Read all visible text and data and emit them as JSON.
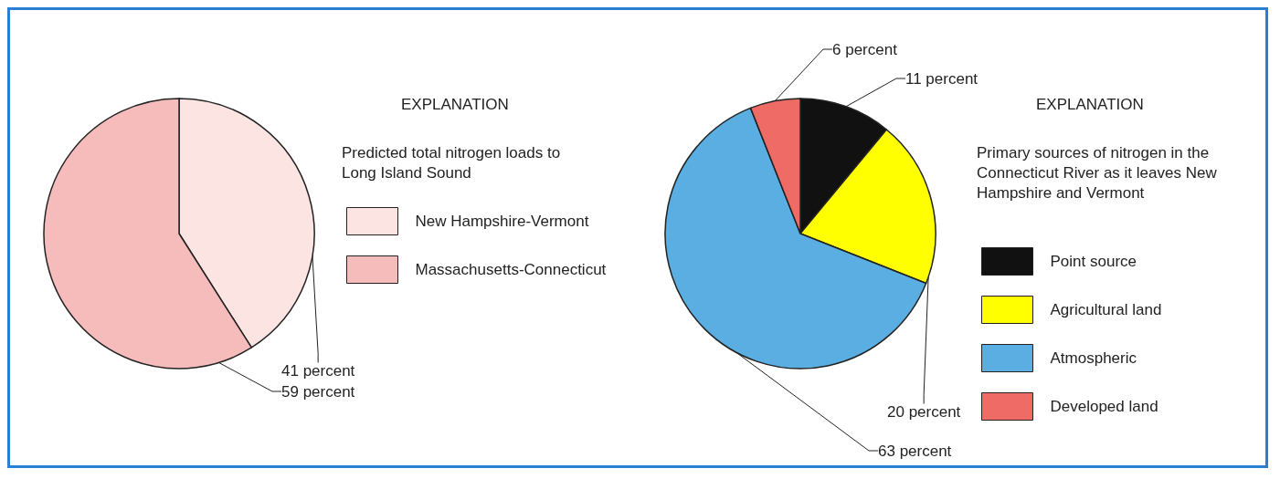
{
  "chart_data": [
    {
      "type": "pie",
      "title": "EXPLANATION",
      "legend_title": "Predicted total nitrogen loads to Long Island Sound",
      "categories": [
        "New Hampshire-Vermont",
        "Massachusetts-Connecticut"
      ],
      "values": [
        41,
        59
      ],
      "colors": [
        "#fbe4e2",
        "#f6bcbc"
      ],
      "value_labels": [
        "41 percent",
        "59 percent"
      ],
      "legend": "right"
    },
    {
      "type": "pie",
      "title": "EXPLANATION",
      "legend_title": "Primary sources of nitrogen in the Connecticut River as it leaves New Hampshire and Vermont",
      "categories": [
        "Point source",
        "Agricultural land",
        "Atmospheric",
        "Developed land"
      ],
      "values": [
        11,
        20,
        63,
        6
      ],
      "colors": [
        "#111111",
        "#ffff00",
        "#5aaee2",
        "#ee6b66"
      ],
      "value_labels": [
        "11 percent",
        "20 percent",
        "63 percent",
        "6 percent"
      ],
      "legend": "right"
    }
  ]
}
